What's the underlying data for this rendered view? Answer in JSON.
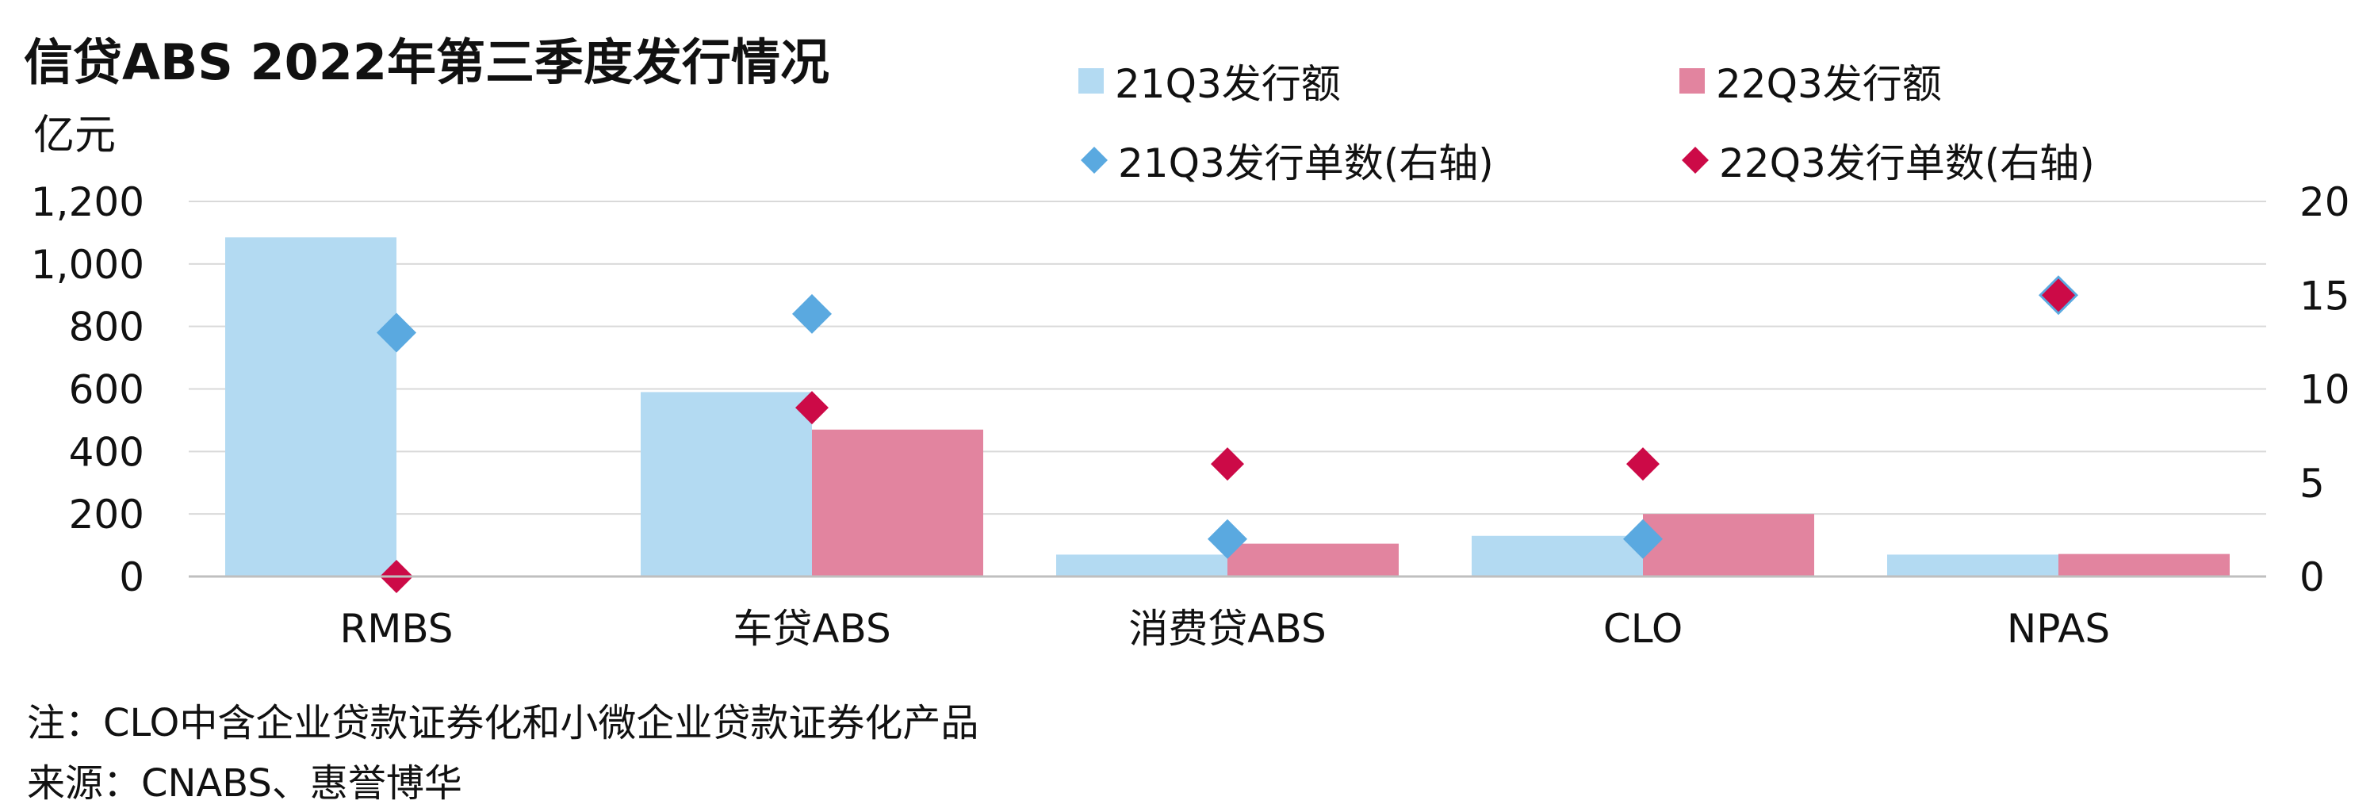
{
  "colors": {
    "bar_21q3": "#b3daf2",
    "bar_22q3": "#e2849f",
    "marker_21q3": "#5aa9e0",
    "marker_22q3": "#cc0a47",
    "grid": "#d9d9d9",
    "axis": "#bfbfbf"
  },
  "chart_data": {
    "type": "bar",
    "title": "信贷ABS 2022年第三季度发行情况",
    "ylabel": "亿元",
    "categories": [
      "RMBS",
      "车贷ABS",
      "消费贷ABS",
      "CLO",
      "NPAS"
    ],
    "ylim": [
      0,
      1200
    ],
    "yticks": [
      "0",
      "200",
      "400",
      "600",
      "800",
      "1,000",
      "1,200"
    ],
    "y2lim": [
      0,
      20
    ],
    "y2ticks": [
      "0",
      "5",
      "10",
      "15",
      "20"
    ],
    "grid": true,
    "legend_position": "top",
    "series": [
      {
        "name": "21Q3发行额",
        "kind": "bar",
        "axis": "left",
        "values": [
          1085,
          590,
          70,
          130,
          70
        ]
      },
      {
        "name": "22Q3发行额",
        "kind": "bar",
        "axis": "left",
        "values": [
          0,
          470,
          105,
          200,
          72
        ]
      },
      {
        "name": "21Q3发行单数(右轴)",
        "kind": "marker",
        "axis": "right",
        "values": [
          13,
          14,
          2,
          2,
          15
        ]
      },
      {
        "name": "22Q3发行单数(右轴)",
        "kind": "marker",
        "axis": "right",
        "values": [
          0,
          9,
          6,
          6,
          15
        ]
      }
    ],
    "notes": [
      "注：CLO中含企业贷款证券化和小微企业贷款证券化产品",
      "来源：CNABS、惠誉博华"
    ]
  }
}
